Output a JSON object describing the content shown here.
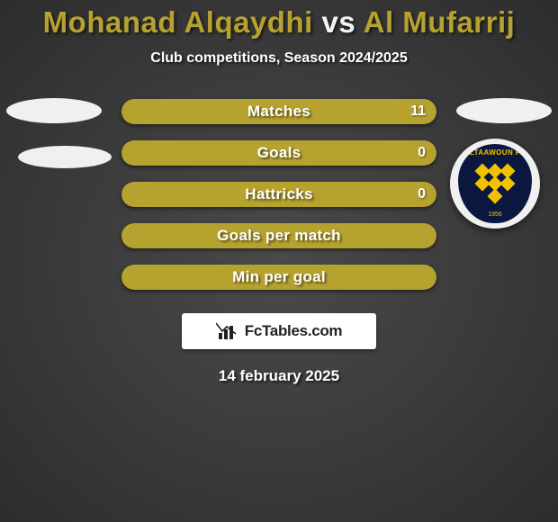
{
  "title": {
    "player1": "Mohanad Alqaydhi",
    "vs": "vs",
    "player2": "Al Mufarrij",
    "player1_color": "#b5a22f",
    "vs_color": "#f5f5f5",
    "player2_color": "#b5a22f",
    "fontsize": 33
  },
  "subtitle": "Club competitions, Season 2024/2025",
  "crest": {
    "label": "ALTAAWOUN FC",
    "year": "1956",
    "shield_color": "#0a1840",
    "accent_color": "#f2c200",
    "outer_color": "#f0f0f0"
  },
  "bars": {
    "bar_bg": "#4a4a4a",
    "fill_color": "#b5a22f",
    "items": [
      {
        "label": "Matches",
        "right_value": "11",
        "fill_pct": 100
      },
      {
        "label": "Goals",
        "right_value": "0",
        "fill_pct": 100
      },
      {
        "label": "Hattricks",
        "right_value": "0",
        "fill_pct": 100
      },
      {
        "label": "Goals per match",
        "right_value": "",
        "fill_pct": 100
      },
      {
        "label": "Min per goal",
        "right_value": "",
        "fill_pct": 100
      }
    ]
  },
  "logo": {
    "text": "FcTables.com",
    "icon_color": "#222222"
  },
  "date": "14 february 2025",
  "background": {
    "center": "#4a4a4a",
    "edge": "#2d2d2d"
  }
}
